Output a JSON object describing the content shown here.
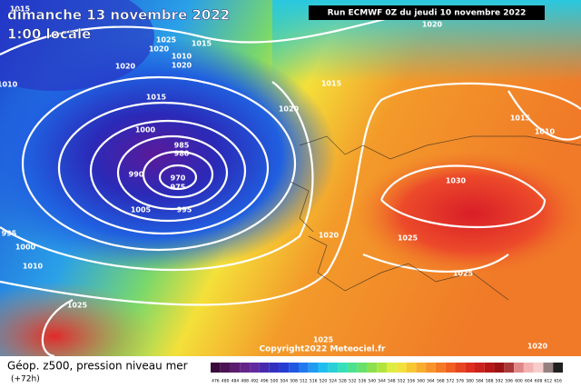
{
  "header": {
    "title": "dimanche 13 novembre 2022",
    "subtitle": "1:00 locale",
    "run": "Run ECMWF 0Z du jeudi 10 novembre 2022"
  },
  "map": {
    "isobar_labels": [
      "1015",
      "1025",
      "1020",
      "1015",
      "1010",
      "1020",
      "1020",
      "1020",
      "1015",
      "1015",
      "1020",
      "1000",
      "985",
      "980",
      "970",
      "975",
      "990",
      "1005",
      "995",
      "1030",
      "1020",
      "1025",
      "995",
      "1000",
      "1010",
      "1025",
      "1025",
      "1025",
      "1020",
      "1015",
      "1010",
      "1010"
    ],
    "copyright": "Copyright2022 Meteociel.fr"
  },
  "legend": {
    "title": "Géop. z500, pression niveau mer",
    "lead": "(+72h)",
    "scale": [
      "476",
      "480",
      "484",
      "488",
      "492",
      "496",
      "500",
      "504",
      "508",
      "512",
      "516",
      "520",
      "524",
      "528",
      "532",
      "536",
      "540",
      "544",
      "548",
      "552",
      "556",
      "560",
      "564",
      "568",
      "572",
      "576",
      "580",
      "584",
      "588",
      "592",
      "596",
      "600",
      "604",
      "608",
      "612",
      "616"
    ]
  }
}
